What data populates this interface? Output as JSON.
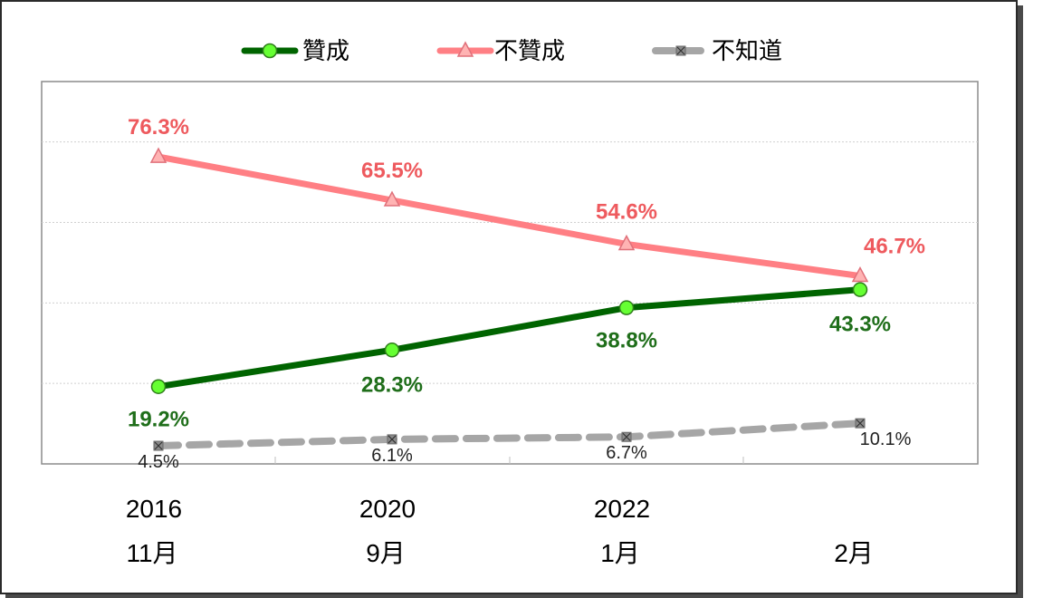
{
  "chart_data": {
    "type": "line",
    "categories": [
      {
        "year": "2016",
        "month": "11月"
      },
      {
        "year": "2020",
        "month": "9月"
      },
      {
        "year": "2022",
        "month": "1月"
      },
      {
        "year": "",
        "month": "2月"
      }
    ],
    "ylim": [
      0,
      100
    ],
    "grid": true,
    "legend_position": "top",
    "series": [
      {
        "name": "贊成",
        "values": [
          19.2,
          28.3,
          38.8,
          43.3
        ],
        "labels": [
          "19.2%",
          "28.3%",
          "38.8%",
          "43.3%"
        ],
        "color": "#006400",
        "marker": "circle",
        "marker_color": "#66ff33",
        "dash": "solid"
      },
      {
        "name": "不贊成",
        "values": [
          76.3,
          65.5,
          54.6,
          46.7
        ],
        "labels": [
          "76.3%",
          "65.5%",
          "54.6%",
          "46.7%"
        ],
        "color": "#ff7f84",
        "marker": "triangle",
        "marker_color": "#ffb3b3",
        "dash": "solid"
      },
      {
        "name": "不知道",
        "values": [
          4.5,
          6.1,
          6.7,
          10.1
        ],
        "labels": [
          "4.5%",
          "6.1%",
          "6.7%",
          "10.1%"
        ],
        "color": "#a6a6a6",
        "marker": "x-square",
        "marker_color": "#8c8c8c",
        "dash": "dashed"
      }
    ]
  }
}
